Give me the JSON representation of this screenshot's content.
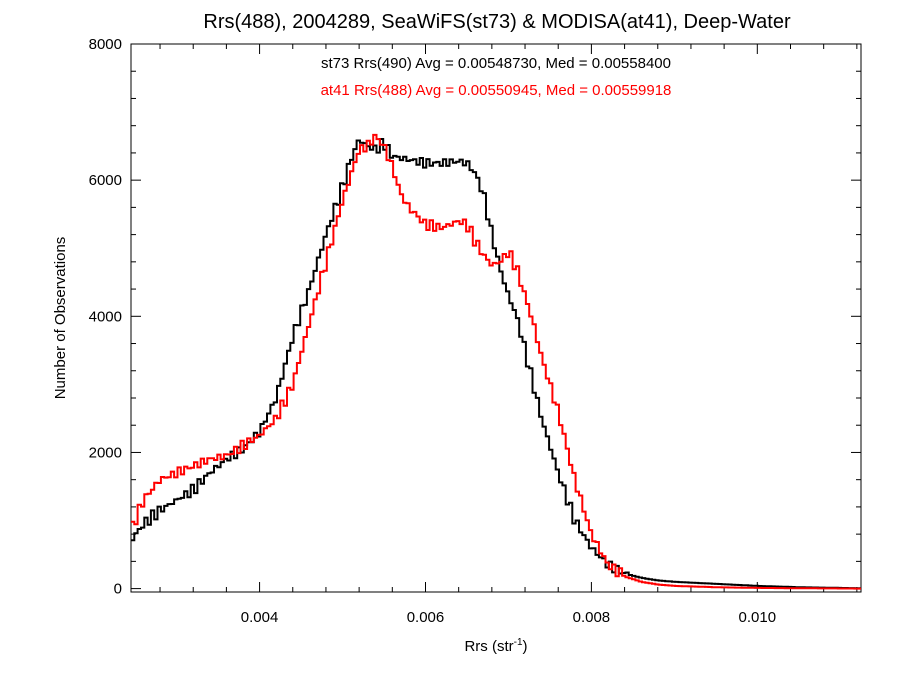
{
  "chart_data": {
    "type": "line",
    "title": "Rrs(488), 2004289, SeaWiFS(st73) & MODISA(at41), Deep-Water",
    "xlabel": {
      "main": "Rrs (str",
      "sup": "-1",
      "close": ")"
    },
    "ylabel": "Number of Observations",
    "xlim": [
      0.00245,
      0.01125
    ],
    "ylim": [
      -50,
      8000
    ],
    "x_ticks": [
      0.004,
      0.006,
      0.008,
      0.01
    ],
    "x_tick_labels": [
      "0.004",
      "0.006",
      "0.008",
      "0.010"
    ],
    "y_ticks": [
      0,
      2000,
      4000,
      6000,
      8000
    ],
    "y_tick_labels": [
      "0",
      "2000",
      "4000",
      "6000",
      "8000"
    ],
    "grid": false,
    "annotations": [
      {
        "text": "st73 Rrs(490) Avg = 0.00548730, Med = 0.00558400",
        "color": "#000000"
      },
      {
        "text": "at41 Rrs(488) Avg = 0.00550945, Med = 0.00559918",
        "color": "#ff0000"
      }
    ],
    "series": [
      {
        "color": "#000000",
        "x": [
          0.00245,
          0.0026,
          0.0028,
          0.003,
          0.0032,
          0.0034,
          0.0036,
          0.0038,
          0.004,
          0.0042,
          0.0044,
          0.0046,
          0.0048,
          0.005,
          0.0051,
          0.0052,
          0.0053,
          0.0054,
          0.0055,
          0.0056,
          0.0058,
          0.006,
          0.0062,
          0.0064,
          0.0065,
          0.0066,
          0.0067,
          0.0068,
          0.0069,
          0.007,
          0.0071,
          0.0072,
          0.0073,
          0.0074,
          0.0076,
          0.0078,
          0.008,
          0.0082,
          0.0084,
          0.0086,
          0.0088,
          0.009,
          0.0095,
          0.01,
          0.0105,
          0.011,
          0.01125
        ],
        "values": [
          700,
          950,
          1150,
          1300,
          1450,
          1700,
          1900,
          2050,
          2300,
          2800,
          3700,
          4400,
          5200,
          5900,
          6300,
          6600,
          6500,
          6450,
          6550,
          6350,
          6300,
          6250,
          6250,
          6280,
          6250,
          6100,
          5800,
          5200,
          4700,
          4300,
          4000,
          3500,
          3000,
          2500,
          1700,
          1000,
          600,
          350,
          220,
          160,
          120,
          100,
          70,
          40,
          20,
          10,
          5
        ]
      },
      {
        "color": "#ff0000",
        "x": [
          0.00245,
          0.0026,
          0.0028,
          0.003,
          0.0032,
          0.0034,
          0.0036,
          0.0038,
          0.004,
          0.0042,
          0.0044,
          0.0046,
          0.0048,
          0.005,
          0.0052,
          0.0053,
          0.0054,
          0.0055,
          0.0056,
          0.0057,
          0.0058,
          0.006,
          0.0062,
          0.0064,
          0.0065,
          0.0066,
          0.0067,
          0.0068,
          0.0069,
          0.007,
          0.0071,
          0.0072,
          0.0073,
          0.0074,
          0.0076,
          0.0078,
          0.008,
          0.0082,
          0.0084,
          0.0086,
          0.0088,
          0.009,
          0.0095,
          0.01,
          0.0105,
          0.011,
          0.01125
        ],
        "values": [
          850,
          1300,
          1600,
          1700,
          1800,
          1900,
          1950,
          2100,
          2250,
          2500,
          3000,
          3900,
          4800,
          5700,
          6450,
          6500,
          6650,
          6500,
          6200,
          5800,
          5600,
          5350,
          5300,
          5400,
          5350,
          5100,
          4900,
          4750,
          4800,
          4950,
          4700,
          4300,
          3900,
          3400,
          2600,
          1600,
          800,
          350,
          180,
          100,
          60,
          40,
          20,
          10,
          5,
          2,
          0
        ]
      }
    ]
  }
}
